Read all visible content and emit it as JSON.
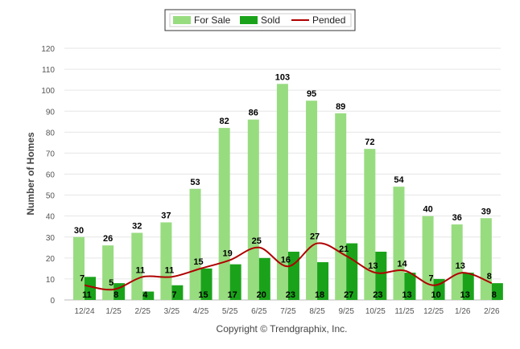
{
  "chart_data": {
    "type": "bar",
    "categories": [
      "12/24",
      "1/25",
      "2/25",
      "3/25",
      "4/25",
      "5/25",
      "6/25",
      "7/25",
      "8/25",
      "9/25",
      "10/25",
      "11/25",
      "12/25",
      "1/26",
      "2/26"
    ],
    "series": [
      {
        "name": "For Sale",
        "type": "bar",
        "color": "#98dc80",
        "values": [
          30,
          26,
          32,
          37,
          53,
          82,
          86,
          103,
          95,
          89,
          72,
          54,
          40,
          36,
          39
        ]
      },
      {
        "name": "Sold",
        "type": "bar",
        "color": "#1aa31a",
        "values": [
          11,
          8,
          4,
          7,
          15,
          17,
          20,
          23,
          18,
          27,
          23,
          13,
          10,
          13,
          8
        ]
      },
      {
        "name": "Pended",
        "type": "line",
        "color": "#b00000",
        "values": [
          7,
          5,
          11,
          11,
          15,
          19,
          25,
          16,
          27,
          21,
          13,
          14,
          7,
          13,
          8
        ]
      }
    ],
    "ylabel": "Number of Homes",
    "xlabel": "",
    "ylim": [
      0,
      120
    ],
    "yticks": [
      0,
      10,
      20,
      30,
      40,
      50,
      60,
      70,
      80,
      90,
      100,
      110,
      120
    ],
    "grid": true,
    "legend_position": "top-center",
    "credit": "Copyright © Trendgraphix, Inc."
  }
}
